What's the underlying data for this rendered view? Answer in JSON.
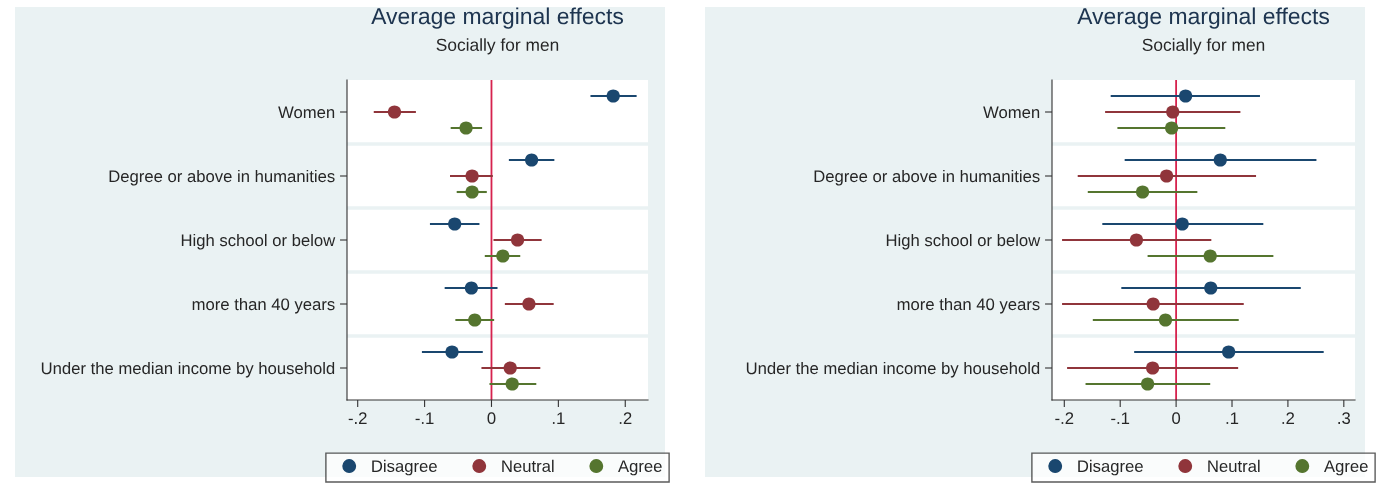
{
  "chart_data": [
    {
      "type": "scatter",
      "orientation": "horizontal",
      "title": "Average marginal effects",
      "subtitle": "Socially for men",
      "categories": [
        "Women",
        "Degree or above in humanities",
        "High school or below",
        "more than 40 years",
        "Under the median income by household"
      ],
      "series": [
        {
          "name": "Disagree",
          "color": "#1a476f",
          "values": [
            0.182,
            0.06,
            -0.055,
            -0.03,
            -0.059
          ],
          "errors": [
            [
              0.148,
              0.217
            ],
            [
              0.026,
              0.094
            ],
            [
              -0.092,
              -0.018
            ],
            [
              -0.07,
              0.009
            ],
            [
              -0.104,
              -0.013
            ]
          ]
        },
        {
          "name": "Neutral",
          "color": "#90353b",
          "values": [
            -0.145,
            -0.029,
            0.039,
            0.056,
            0.028
          ],
          "errors": [
            [
              -0.176,
              -0.113
            ],
            [
              -0.062,
              0.002
            ],
            [
              0.003,
              0.075
            ],
            [
              0.02,
              0.093
            ],
            [
              -0.015,
              0.073
            ]
          ]
        },
        {
          "name": "Agree",
          "color": "#55752f",
          "values": [
            -0.038,
            -0.029,
            0.017,
            -0.025,
            0.031
          ],
          "errors": [
            [
              -0.061,
              -0.014
            ],
            [
              -0.052,
              -0.007
            ],
            [
              -0.01,
              0.043
            ],
            [
              -0.054,
              0.004
            ],
            [
              -0.003,
              0.067
            ]
          ]
        }
      ],
      "xlim": [
        -0.216,
        0.234
      ],
      "xticks": [
        {
          "value": -0.2,
          "label": "-.2"
        },
        {
          "value": -0.1,
          "label": "-.1"
        },
        0,
        {
          "value": 0.1,
          "label": ".1"
        },
        {
          "value": 0.2,
          "label": ".2"
        }
      ],
      "ref_lines": [
        {
          "axis": "x",
          "value": 0,
          "color": "#d6224e"
        }
      ],
      "grid": "y",
      "legend": "bottom",
      "marker": "circle"
    },
    {
      "type": "scatter",
      "orientation": "horizontal",
      "title": "Average marginal effects",
      "subtitle": "Socially for men",
      "categories": [
        "Women",
        "Degree or above in humanities",
        "High school or below",
        "more than 40 years",
        "Under the median income by household"
      ],
      "series": [
        {
          "name": "Disagree",
          "color": "#1a476f",
          "values": [
            0.017,
            0.079,
            0.011,
            0.062,
            0.094
          ],
          "errors": [
            [
              -0.117,
              0.15
            ],
            [
              -0.092,
              0.251
            ],
            [
              -0.132,
              0.156
            ],
            [
              -0.098,
              0.223
            ],
            [
              -0.075,
              0.264
            ]
          ]
        },
        {
          "name": "Neutral",
          "color": "#90353b",
          "values": [
            -0.006,
            -0.017,
            -0.071,
            -0.041,
            -0.042
          ],
          "errors": [
            [
              -0.127,
              0.115
            ],
            [
              -0.176,
              0.143
            ],
            [
              -0.204,
              0.063
            ],
            [
              -0.204,
              0.121
            ],
            [
              -0.195,
              0.111
            ]
          ]
        },
        {
          "name": "Agree",
          "color": "#55752f",
          "values": [
            -0.008,
            -0.06,
            0.061,
            -0.019,
            -0.051
          ],
          "errors": [
            [
              -0.105,
              0.088
            ],
            [
              -0.158,
              0.038
            ],
            [
              -0.051,
              0.174
            ],
            [
              -0.149,
              0.112
            ],
            [
              -0.162,
              0.061
            ]
          ]
        }
      ],
      "xlim": [
        -0.222,
        0.32
      ],
      "xticks": [
        {
          "value": -0.2,
          "label": "-.2"
        },
        {
          "value": -0.1,
          "label": "-.1"
        },
        0,
        {
          "value": 0.1,
          "label": ".1"
        },
        {
          "value": 0.2,
          "label": ".2"
        },
        {
          "value": 0.3,
          "label": ".3"
        }
      ],
      "ref_lines": [
        {
          "axis": "x",
          "value": 0,
          "color": "#d6224e"
        }
      ],
      "grid": "y",
      "legend": "bottom",
      "marker": "circle"
    }
  ]
}
